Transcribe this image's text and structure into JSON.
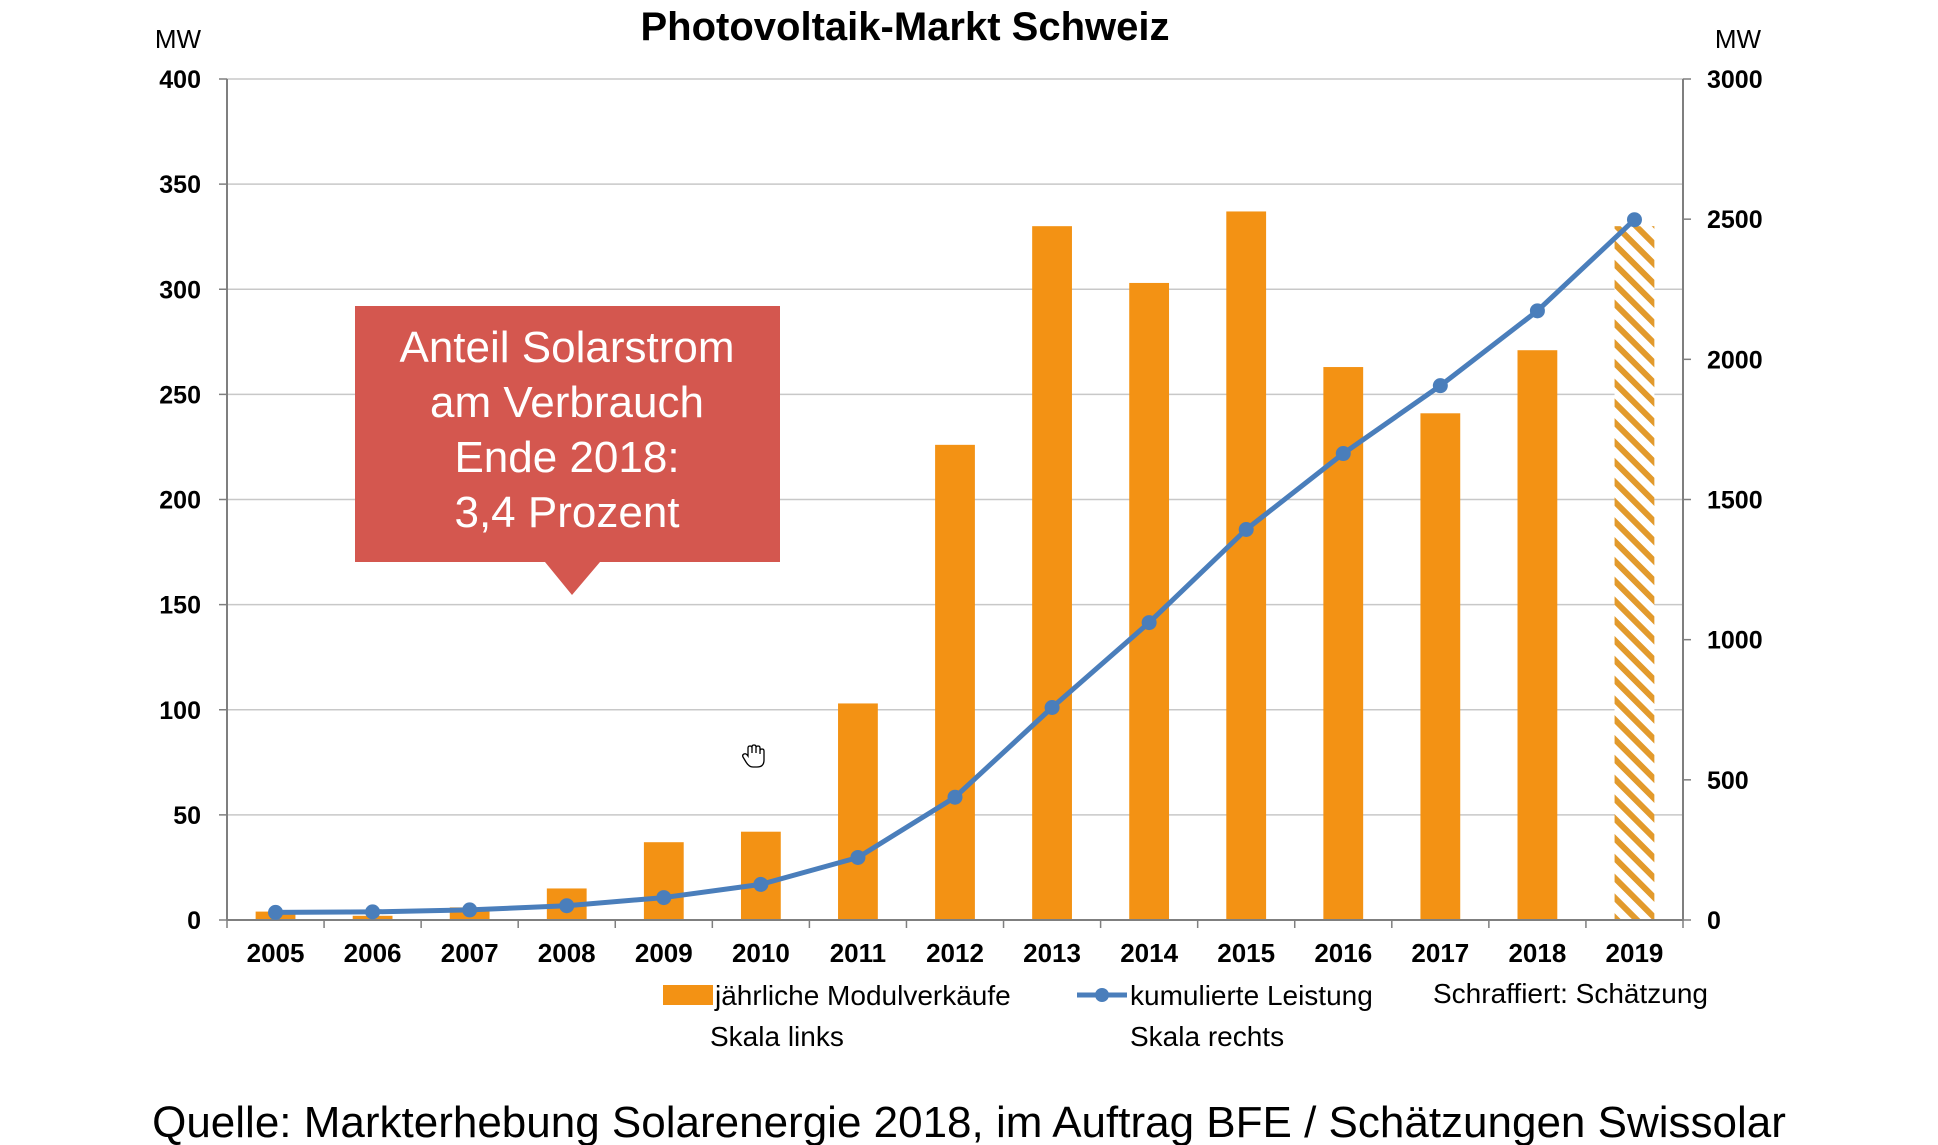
{
  "chart_data": {
    "type": "bar",
    "title": "Photovoltaik-Markt Schweiz",
    "unit_left": "MW",
    "unit_right": "MW",
    "categories": [
      "2005",
      "2006",
      "2007",
      "2008",
      "2009",
      "2010",
      "2011",
      "2012",
      "2013",
      "2014",
      "2015",
      "2016",
      "2017",
      "2018",
      "2019"
    ],
    "ylim_left": [
      0,
      400
    ],
    "ylim_right": [
      0,
      3000
    ],
    "yticks_left": [
      "0",
      "50",
      "100",
      "150",
      "200",
      "250",
      "300",
      "350",
      "400"
    ],
    "yticks_right": [
      "0",
      "500",
      "1000",
      "1500",
      "2000",
      "2500",
      "3000"
    ],
    "grid": true,
    "series": [
      {
        "name": "jährliche Modulverkäufe",
        "name_line2": "Skala links",
        "type": "bar",
        "axis": "left",
        "color": "#f39214",
        "values": [
          4,
          2,
          6,
          15,
          37,
          42,
          103,
          226,
          330,
          303,
          337,
          263,
          241,
          271,
          330
        ],
        "estimate": [
          false,
          false,
          false,
          false,
          false,
          false,
          false,
          false,
          false,
          false,
          false,
          false,
          false,
          false,
          true
        ]
      },
      {
        "name": "kumulierte Leistung",
        "name_line2": "Skala rechts",
        "type": "line",
        "axis": "right",
        "color": "#4a7ebb",
        "values": [
          27,
          29,
          36,
          51,
          80,
          127,
          223,
          438,
          758,
          1061,
          1393,
          1664,
          1906,
          2173,
          2498
        ]
      }
    ],
    "legend_note": "Schraffiert: Schätzung",
    "annotation": {
      "lines": [
        "Anteil Solarstrom",
        "am Verbrauch",
        "Ende 2018:",
        "3,4 Prozent"
      ],
      "color": "#d4574f"
    }
  },
  "source": "Quelle: Markterhebung Solarenergie 2018, im Auftrag BFE / Schätzungen Swissolar"
}
